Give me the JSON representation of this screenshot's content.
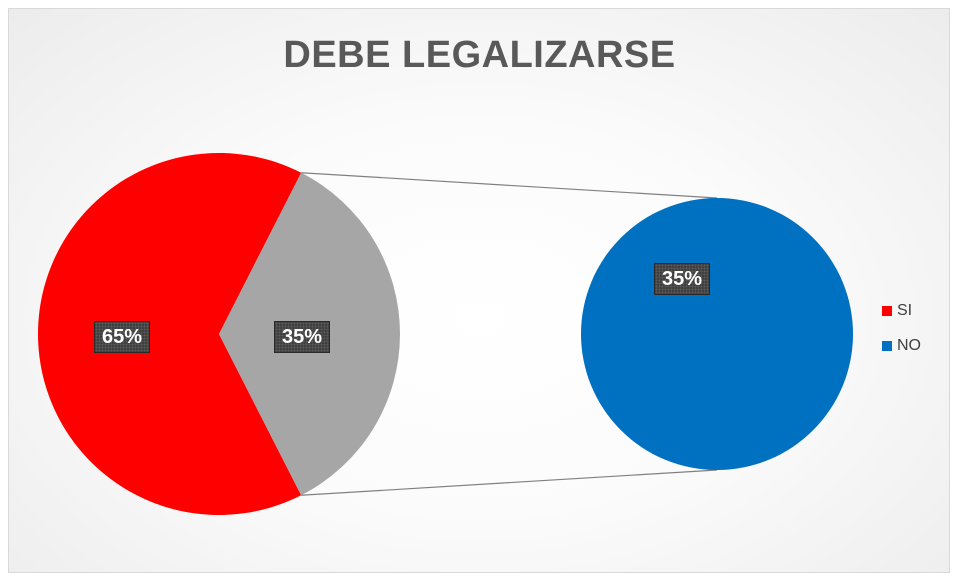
{
  "chart_data": {
    "type": "pie",
    "subtype": "pie-of-pie",
    "title": "DEBE LEGALIZARSE",
    "slices": [
      {
        "name": "SI",
        "value": 65,
        "label": "65%",
        "color": "#ff0000"
      },
      {
        "name": "NO",
        "value": 35,
        "label": "35%",
        "color": "#a6a6a6"
      }
    ],
    "secondary": {
      "name": "NO",
      "value": 35,
      "label": "35%",
      "color": "#0070c0"
    },
    "legend": {
      "placement": "right",
      "entries": [
        {
          "name": "SI",
          "color": "#ff0000"
        },
        {
          "name": "NO",
          "color": "#0070c0"
        }
      ]
    }
  }
}
